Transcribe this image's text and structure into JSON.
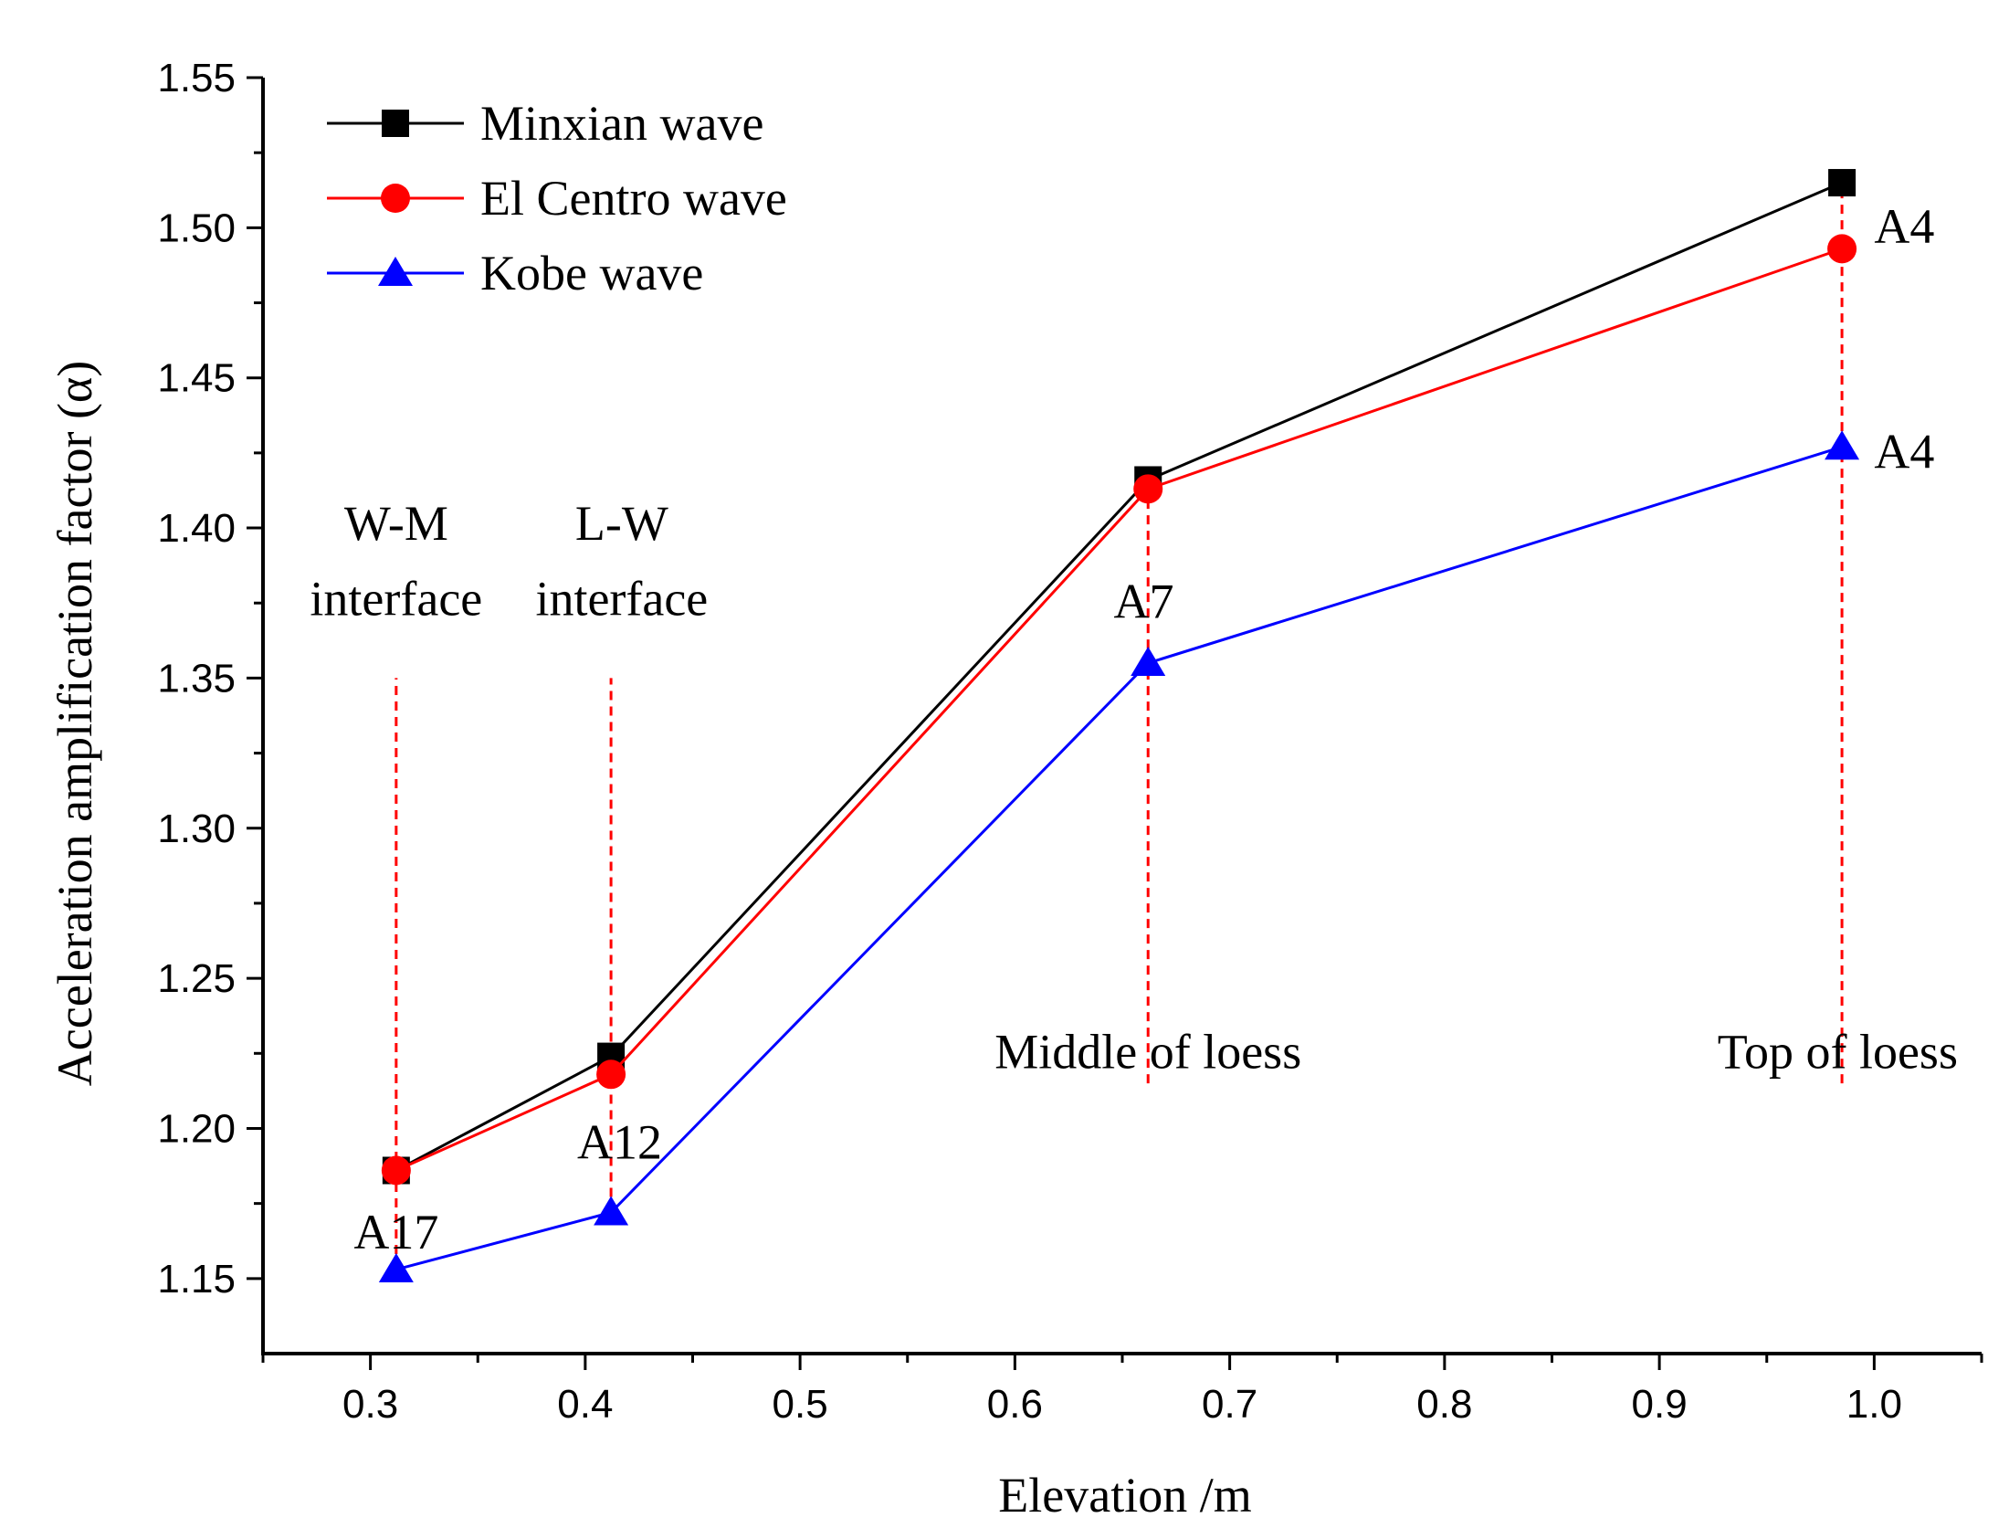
{
  "chart_data": {
    "type": "line",
    "title": "",
    "xlabel": "Elevation /m",
    "ylabel": "Acceleration amplification factor (α)",
    "xlim": [
      0.25,
      1.05
    ],
    "ylim": [
      1.125,
      1.55
    ],
    "xticks": [
      0.3,
      0.4,
      0.5,
      0.6,
      0.7,
      0.8,
      0.9,
      1.0
    ],
    "xtick_labels": [
      "0.3",
      "0.4",
      "0.5",
      "0.6",
      "0.7",
      "0.8",
      "0.9",
      "1.0"
    ],
    "yticks": [
      1.15,
      1.2,
      1.25,
      1.3,
      1.35,
      1.4,
      1.45,
      1.5,
      1.55
    ],
    "ytick_labels": [
      "1.15",
      "1.20",
      "1.25",
      "1.30",
      "1.35",
      "1.40",
      "1.45",
      "1.50",
      "1.55"
    ],
    "grid": false,
    "legend_position": "top-left",
    "x": [
      0.312,
      0.412,
      0.662,
      0.985
    ],
    "series": [
      {
        "name": "Minxian wave",
        "color": "#000000",
        "marker": "square",
        "values": [
          1.186,
          1.224,
          1.416,
          1.515
        ]
      },
      {
        "name": "El Centro wave",
        "color": "#ff0000",
        "marker": "circle",
        "values": [
          1.186,
          1.218,
          1.413,
          1.493
        ]
      },
      {
        "name": "Kobe wave",
        "color": "#0000ff",
        "marker": "triangle",
        "values": [
          1.153,
          1.172,
          1.355,
          1.427
        ]
      }
    ],
    "guide_color": "#ff0000",
    "guide_lines": [
      {
        "x": 0.312,
        "y_from": 1.153,
        "y_to": 1.35
      },
      {
        "x": 0.412,
        "y_from": 1.172,
        "y_to": 1.35
      },
      {
        "x": 0.662,
        "y_from": 1.215,
        "y_to": 1.413
      },
      {
        "x": 0.985,
        "y_from": 1.215,
        "y_to": 1.515
      }
    ],
    "annotations": [
      {
        "text": "W-M",
        "x": 0.312,
        "y": 1.396,
        "anchor": "middle"
      },
      {
        "text": "interface",
        "x": 0.312,
        "y": 1.371,
        "anchor": "middle"
      },
      {
        "text": "L-W",
        "x": 0.417,
        "y": 1.396,
        "anchor": "middle"
      },
      {
        "text": "interface",
        "x": 0.417,
        "y": 1.371,
        "anchor": "middle"
      },
      {
        "text": "A17",
        "x": 0.312,
        "y": 1.16,
        "anchor": "middle"
      },
      {
        "text": "A12",
        "x": 0.416,
        "y": 1.19,
        "anchor": "middle"
      },
      {
        "text": "A7",
        "x": 0.66,
        "y": 1.37,
        "anchor": "middle"
      },
      {
        "text": "A4",
        "x": 1.0,
        "y": 1.495,
        "anchor": "start"
      },
      {
        "text": "A4",
        "x": 1.0,
        "y": 1.42,
        "anchor": "start"
      },
      {
        "text": "Middle of loess",
        "x": 0.662,
        "y": 1.22,
        "anchor": "middle"
      },
      {
        "text": "Top of loess",
        "x": 0.983,
        "y": 1.22,
        "anchor": "middle"
      }
    ]
  }
}
